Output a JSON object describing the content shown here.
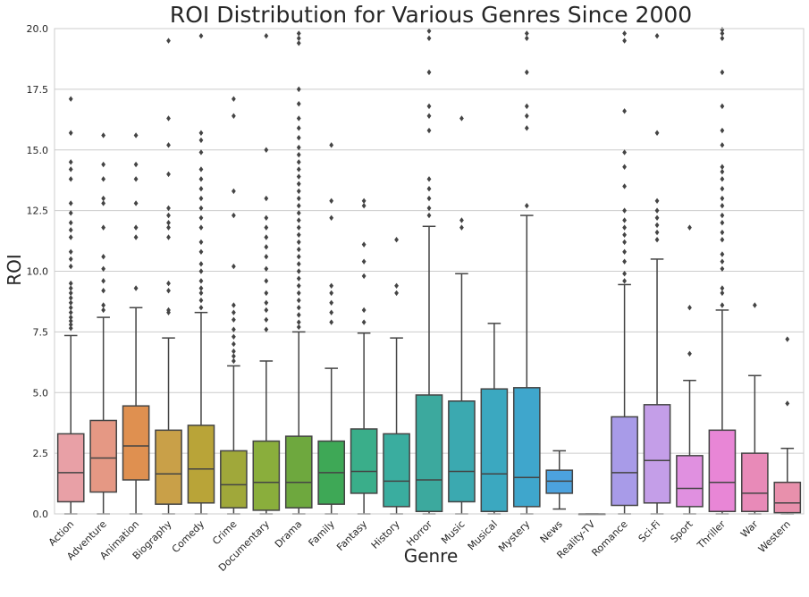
{
  "chart_data": {
    "type": "box",
    "title": "ROI Distribution for Various Genres Since 2000",
    "xlabel": "Genre",
    "ylabel": "ROI",
    "ylim": [
      0,
      20
    ],
    "yticks": [
      0.0,
      2.5,
      5.0,
      7.5,
      10.0,
      12.5,
      15.0,
      17.5,
      20.0
    ],
    "ytick_labels": [
      "0.0",
      "2.5",
      "5.0",
      "7.5",
      "10.0",
      "12.5",
      "15.0",
      "17.5",
      "20.0"
    ],
    "grid": "horizontal",
    "categories": [
      "Action",
      "Adventure",
      "Animation",
      "Biography",
      "Comedy",
      "Crime",
      "Documentary",
      "Drama",
      "Family",
      "Fantasy",
      "History",
      "Horror",
      "Music",
      "Musical",
      "Mystery",
      "News",
      "Reality-TV",
      "Romance",
      "Sci-Fi",
      "Sport",
      "Thriller",
      "War",
      "Western"
    ],
    "colors": [
      "#e8a0a6",
      "#e59884",
      "#df9050",
      "#c9a048",
      "#b9a438",
      "#a0a83a",
      "#8aae3c",
      "#6ea83e",
      "#3ea856",
      "#3aae8a",
      "#3aad9f",
      "#3ca99e",
      "#3ba9b0",
      "#3ba8c0",
      "#3fa6cc",
      "#4ca2de",
      "#8b9ae8",
      "#a89be8",
      "#c49ee8",
      "#e090e0",
      "#e886d6",
      "#e88ab8",
      "#e890ac"
    ],
    "boxes": [
      {
        "q1": 0.5,
        "median": 1.7,
        "q3": 3.3,
        "whislo": 0.0,
        "whishi": 7.35,
        "fliers": [
          7.65,
          7.8,
          7.95,
          8.1,
          8.3,
          8.5,
          8.7,
          8.9,
          9.1,
          9.3,
          9.5,
          10.2,
          10.5,
          10.8,
          11.4,
          11.7,
          12.0,
          12.4,
          12.8,
          13.8,
          14.2,
          14.5,
          15.7,
          17.1
        ]
      },
      {
        "q1": 0.9,
        "median": 2.3,
        "q3": 3.85,
        "whislo": 0.0,
        "whishi": 8.1,
        "fliers": [
          8.4,
          8.6,
          9.2,
          9.6,
          10.1,
          10.6,
          11.8,
          12.8,
          13.0,
          13.8,
          14.4,
          15.6
        ]
      },
      {
        "q1": 1.4,
        "median": 2.8,
        "q3": 4.45,
        "whislo": 0.0,
        "whishi": 8.5,
        "fliers": [
          9.3,
          11.4,
          11.8,
          12.8,
          13.8,
          14.4,
          15.6
        ]
      },
      {
        "q1": 0.4,
        "median": 1.65,
        "q3": 3.45,
        "whislo": 0.0,
        "whishi": 7.25,
        "fliers": [
          8.3,
          8.4,
          9.2,
          9.5,
          11.4,
          11.8,
          12.0,
          12.3,
          12.6,
          14.0,
          15.2,
          16.3,
          19.5
        ]
      },
      {
        "q1": 0.45,
        "median": 1.85,
        "q3": 3.65,
        "whislo": 0.0,
        "whishi": 8.3,
        "fliers": [
          8.5,
          8.8,
          9.1,
          9.3,
          9.6,
          10.0,
          10.3,
          10.8,
          11.2,
          11.8,
          12.2,
          12.6,
          13.0,
          13.4,
          13.8,
          14.2,
          14.9,
          15.4,
          15.7,
          19.7
        ]
      },
      {
        "q1": 0.25,
        "median": 1.2,
        "q3": 2.6,
        "whislo": 0.0,
        "whishi": 6.1,
        "fliers": [
          6.3,
          6.5,
          6.7,
          7.0,
          7.3,
          7.6,
          8.0,
          8.3,
          8.6,
          10.2,
          12.3,
          13.3,
          16.4,
          17.1
        ]
      },
      {
        "q1": 0.15,
        "median": 1.3,
        "q3": 3.0,
        "whislo": 0.0,
        "whishi": 6.3,
        "fliers": [
          7.6,
          8.0,
          8.4,
          8.7,
          9.1,
          9.6,
          10.1,
          10.6,
          11.0,
          11.4,
          11.8,
          12.2,
          13.0,
          15.0,
          19.7
        ]
      },
      {
        "q1": 0.25,
        "median": 1.3,
        "q3": 3.2,
        "whislo": 0.0,
        "whishi": 7.5,
        "fliers": [
          7.7,
          7.9,
          8.2,
          8.5,
          8.8,
          9.1,
          9.4,
          9.7,
          10.0,
          10.3,
          10.6,
          10.9,
          11.2,
          11.5,
          11.8,
          12.1,
          12.4,
          12.7,
          13.0,
          13.3,
          13.6,
          13.9,
          14.2,
          14.5,
          14.8,
          15.1,
          15.5,
          15.9,
          16.3,
          16.9,
          17.5,
          19.4,
          19.6,
          19.8
        ]
      },
      {
        "q1": 0.4,
        "median": 1.7,
        "q3": 3.0,
        "whislo": 0.0,
        "whishi": 6.0,
        "fliers": [
          7.9,
          8.3,
          8.7,
          9.1,
          9.4,
          12.2,
          12.9,
          15.2
        ]
      },
      {
        "q1": 0.85,
        "median": 1.75,
        "q3": 3.5,
        "whislo": 0.0,
        "whishi": 7.45,
        "fliers": [
          7.9,
          8.4,
          9.8,
          10.4,
          11.1,
          12.7,
          12.9
        ]
      },
      {
        "q1": 0.3,
        "median": 1.35,
        "q3": 3.3,
        "whislo": 0.0,
        "whishi": 7.25,
        "fliers": [
          9.1,
          9.4,
          11.3
        ]
      },
      {
        "q1": 0.1,
        "median": 1.4,
        "q3": 4.9,
        "whislo": 0.0,
        "whishi": 11.85,
        "fliers": [
          12.3,
          12.6,
          13.0,
          13.4,
          13.8,
          15.8,
          16.4,
          16.8,
          18.2,
          19.6,
          19.9
        ]
      },
      {
        "q1": 0.5,
        "median": 1.75,
        "q3": 4.65,
        "whislo": 0.0,
        "whishi": 9.9,
        "fliers": [
          11.8,
          12.1,
          16.3
        ]
      },
      {
        "q1": 0.1,
        "median": 1.65,
        "q3": 5.15,
        "whislo": 0.0,
        "whishi": 7.85,
        "fliers": []
      },
      {
        "q1": 0.3,
        "median": 1.5,
        "q3": 5.2,
        "whislo": 0.0,
        "whishi": 12.3,
        "fliers": [
          12.7,
          15.9,
          16.4,
          16.8,
          18.2,
          19.6,
          19.8
        ]
      },
      {
        "q1": 0.85,
        "median": 1.35,
        "q3": 1.8,
        "whislo": 0.2,
        "whishi": 2.6,
        "fliers": []
      },
      {
        "q1": 0.0,
        "median": 0.0,
        "q3": 0.0,
        "whislo": 0.0,
        "whishi": 0.0,
        "fliers": []
      },
      {
        "q1": 0.35,
        "median": 1.7,
        "q3": 4.0,
        "whislo": 0.0,
        "whishi": 9.45,
        "fliers": [
          9.6,
          9.9,
          10.4,
          10.8,
          11.2,
          11.5,
          11.8,
          12.1,
          12.5,
          13.5,
          14.3,
          14.9,
          16.6,
          19.5,
          19.8
        ]
      },
      {
        "q1": 0.45,
        "median": 2.2,
        "q3": 4.5,
        "whislo": 0.0,
        "whishi": 10.5,
        "fliers": [
          11.3,
          11.6,
          11.9,
          12.2,
          12.5,
          12.9,
          15.7,
          19.7
        ]
      },
      {
        "q1": 0.3,
        "median": 1.05,
        "q3": 2.4,
        "whislo": 0.0,
        "whishi": 5.5,
        "fliers": [
          6.6,
          8.5,
          11.8
        ]
      },
      {
        "q1": 0.1,
        "median": 1.3,
        "q3": 3.45,
        "whislo": 0.0,
        "whishi": 8.4,
        "fliers": [
          8.6,
          9.1,
          9.3,
          10.1,
          10.4,
          10.7,
          11.3,
          11.6,
          12.0,
          12.3,
          12.7,
          13.0,
          13.4,
          13.8,
          14.1,
          14.3,
          15.2,
          15.8,
          16.8,
          18.2,
          19.6,
          19.8,
          19.95
        ]
      },
      {
        "q1": 0.1,
        "median": 0.85,
        "q3": 2.5,
        "whislo": 0.0,
        "whishi": 5.7,
        "fliers": [
          8.6
        ]
      },
      {
        "q1": 0.05,
        "median": 0.45,
        "q3": 1.3,
        "whislo": 0.0,
        "whishi": 2.7,
        "fliers": [
          4.55,
          7.2
        ]
      }
    ]
  }
}
